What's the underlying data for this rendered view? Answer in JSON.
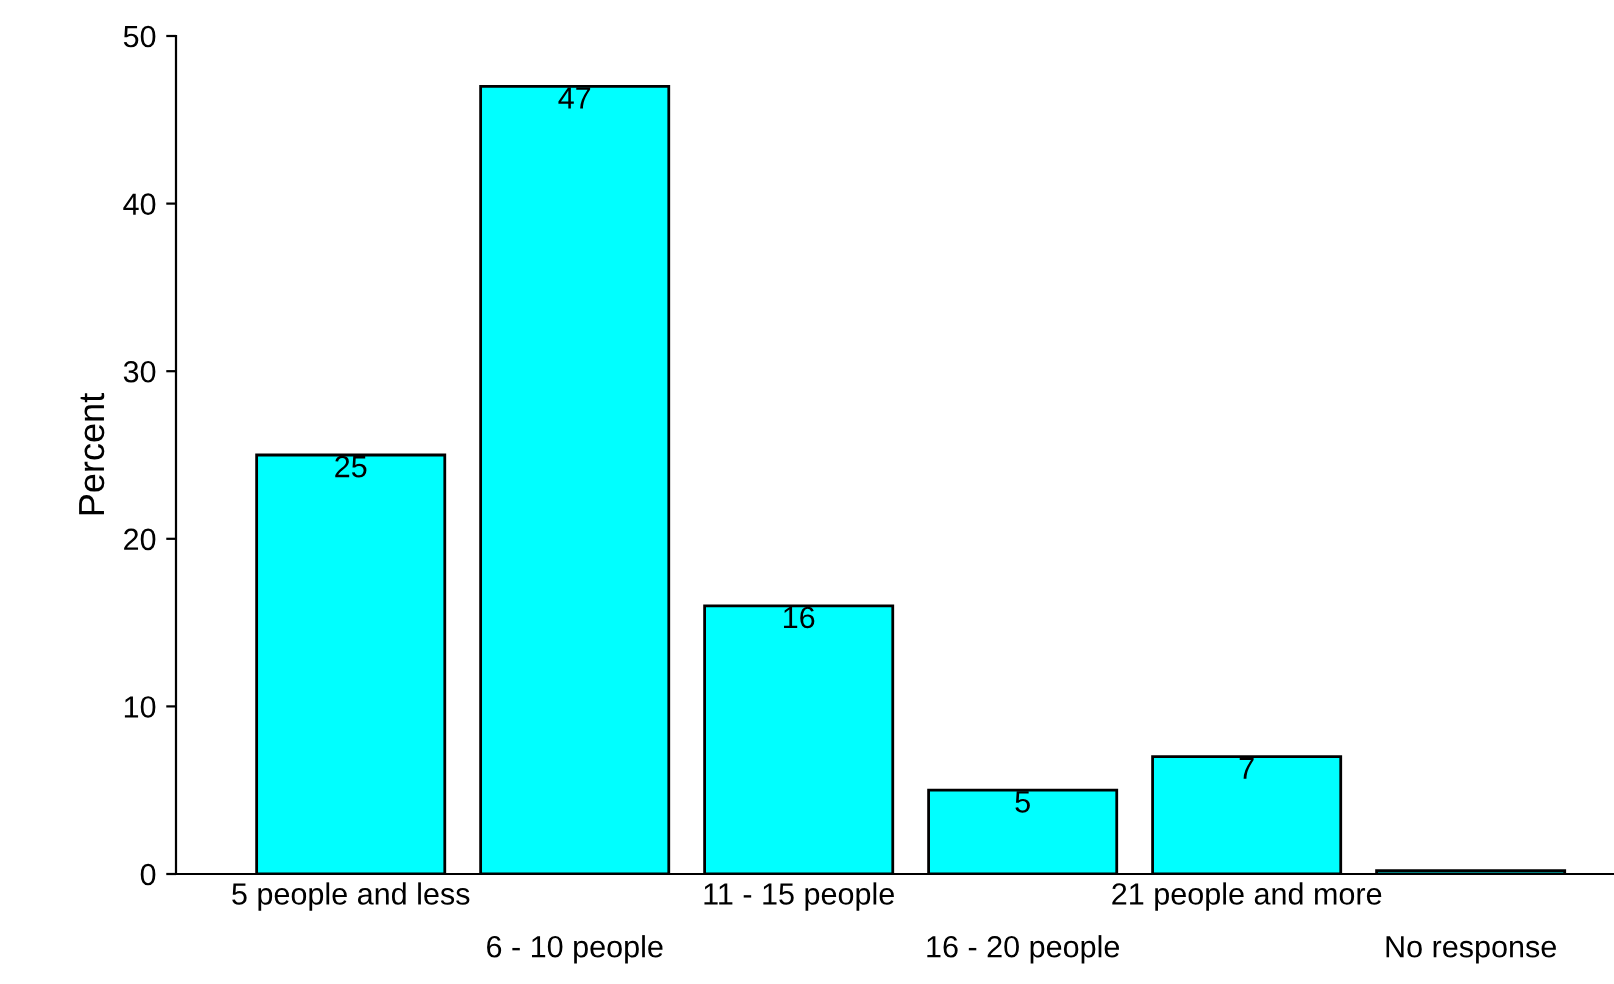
{
  "chart_data": {
    "type": "bar",
    "ylabel": "Percent",
    "categories": [
      "5 people and less",
      "6 - 10 people",
      "11 - 15 people",
      "16 - 20 people",
      "21 people and more",
      "No response"
    ],
    "values": [
      25,
      47,
      16,
      5,
      7,
      0.2
    ],
    "value_labels": [
      "25",
      "47",
      "16",
      "5",
      "7",
      null
    ],
    "color": "#00ffff",
    "ylim": [
      0,
      50
    ],
    "yticks": [
      0,
      10,
      20,
      30,
      40,
      50
    ],
    "grid": false,
    "legend": false
  }
}
